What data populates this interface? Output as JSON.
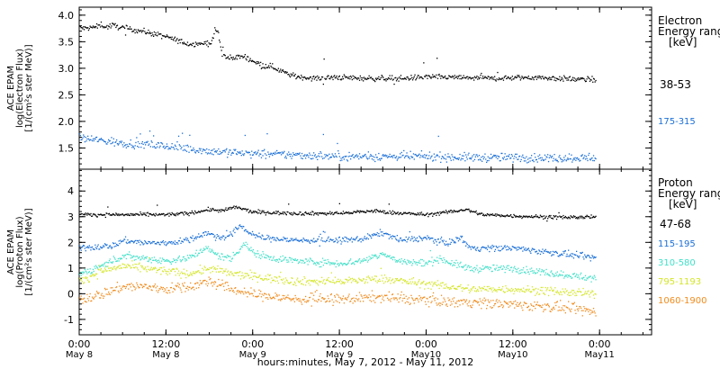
{
  "chart_data": [
    {
      "type": "scatter",
      "ylabel_lines": [
        "ACE EPAM",
        "log(Electron Flux)",
        "[1/(cm²s ster MeV)]"
      ],
      "ylim": [
        1.1,
        4.15
      ],
      "yticks": [
        1.5,
        2.0,
        2.5,
        3.0,
        3.5,
        4.0
      ],
      "ytick_labels": [
        "1.5",
        "2.0",
        "2.5",
        "3.0",
        "3.5",
        "4.0"
      ],
      "legend_title_lines": [
        "Electron",
        "Energy ranges",
        "[keV]"
      ],
      "series": [
        {
          "name": "38-53",
          "color": "#000000",
          "anchors": [
            [
              0,
              3.78
            ],
            [
              0.12,
              3.76
            ],
            [
              0.4,
              3.79
            ],
            [
              0.5,
              3.84
            ],
            [
              0.6,
              3.78
            ],
            [
              0.75,
              3.82
            ],
            [
              1.0,
              3.77
            ],
            [
              1.5,
              3.7
            ],
            [
              2.0,
              3.6
            ],
            [
              2.5,
              3.47
            ],
            [
              2.9,
              3.48
            ],
            [
              3.05,
              3.49
            ],
            [
              3.12,
              3.74
            ],
            [
              3.2,
              3.68
            ],
            [
              3.28,
              3.27
            ],
            [
              3.4,
              3.2
            ],
            [
              3.6,
              3.22
            ],
            [
              3.8,
              3.23
            ],
            [
              4.0,
              3.15
            ],
            [
              4.2,
              3.07
            ],
            [
              4.4,
              3.05
            ],
            [
              4.6,
              2.98
            ],
            [
              4.8,
              2.9
            ],
            [
              5.0,
              2.85
            ],
            [
              5.5,
              2.82
            ],
            [
              6.0,
              2.84
            ],
            [
              6.5,
              2.82
            ],
            [
              7.0,
              2.82
            ],
            [
              7.5,
              2.82
            ],
            [
              8.0,
              2.85
            ],
            [
              8.5,
              2.84
            ],
            [
              9.0,
              2.83
            ],
            [
              9.5,
              2.82
            ],
            [
              10.0,
              2.83
            ],
            [
              10.5,
              2.84
            ],
            [
              11.0,
              2.82
            ],
            [
              11.5,
              2.8
            ],
            [
              11.9,
              2.8
            ]
          ],
          "noise": 0.025
        },
        {
          "name": "175-315",
          "color": "#1a6fd6",
          "anchors": [
            [
              0,
              1.7
            ],
            [
              0.5,
              1.65
            ],
            [
              1.0,
              1.6
            ],
            [
              1.5,
              1.58
            ],
            [
              2.0,
              1.54
            ],
            [
              2.5,
              1.5
            ],
            [
              3.0,
              1.45
            ],
            [
              3.5,
              1.43
            ],
            [
              4.0,
              1.4
            ],
            [
              5.0,
              1.38
            ],
            [
              6.0,
              1.35
            ],
            [
              7.0,
              1.35
            ],
            [
              8.0,
              1.35
            ],
            [
              9.0,
              1.33
            ],
            [
              10.0,
              1.33
            ],
            [
              11.0,
              1.32
            ],
            [
              11.9,
              1.33
            ]
          ],
          "noise": 0.04
        }
      ]
    },
    {
      "type": "scatter",
      "ylabel_lines": [
        "ACE EPAM",
        "log(Proton Flux)",
        "[1/(cm²s ster MeV)]"
      ],
      "ylim": [
        -1.6,
        4.85
      ],
      "yticks": [
        -1,
        0,
        1,
        2,
        3,
        4
      ],
      "ytick_labels": [
        "-1",
        "0",
        "1",
        "2",
        "3",
        "4"
      ],
      "legend_title_lines": [
        "Proton",
        "Energy ranges",
        "[keV]"
      ],
      "series": [
        {
          "name": "47-68",
          "color": "#000000",
          "anchors": [
            [
              0,
              3.1
            ],
            [
              1.0,
              3.1
            ],
            [
              2.0,
              3.1
            ],
            [
              2.5,
              3.15
            ],
            [
              3.0,
              3.3
            ],
            [
              3.3,
              3.25
            ],
            [
              3.6,
              3.4
            ],
            [
              3.8,
              3.3
            ],
            [
              4.0,
              3.2
            ],
            [
              5.0,
              3.15
            ],
            [
              6.0,
              3.15
            ],
            [
              6.8,
              3.25
            ],
            [
              7.0,
              3.2
            ],
            [
              8.0,
              3.1
            ],
            [
              8.5,
              3.2
            ],
            [
              8.9,
              3.3
            ],
            [
              9.3,
              3.1
            ],
            [
              10.0,
              3.05
            ],
            [
              11.0,
              3.0
            ],
            [
              11.9,
              3.0
            ]
          ],
          "noise": 0.035
        },
        {
          "name": "115-195",
          "color": "#1a6fd6",
          "anchors": [
            [
              0,
              1.8
            ],
            [
              0.8,
              1.9
            ],
            [
              1.0,
              2.1
            ],
            [
              1.5,
              2.0
            ],
            [
              2.0,
              2.0
            ],
            [
              2.5,
              2.1
            ],
            [
              2.9,
              2.4
            ],
            [
              3.2,
              2.2
            ],
            [
              3.5,
              2.3
            ],
            [
              3.7,
              2.7
            ],
            [
              3.9,
              2.4
            ],
            [
              4.2,
              2.2
            ],
            [
              5.0,
              2.1
            ],
            [
              6.0,
              2.1
            ],
            [
              6.5,
              2.15
            ],
            [
              7.0,
              2.4
            ],
            [
              7.4,
              2.1
            ],
            [
              8.0,
              2.2
            ],
            [
              8.2,
              2.1
            ],
            [
              8.5,
              2.0
            ],
            [
              8.8,
              2.2
            ],
            [
              9.0,
              1.8
            ],
            [
              9.5,
              1.8
            ],
            [
              10.0,
              1.8
            ],
            [
              10.5,
              1.7
            ],
            [
              11.0,
              1.6
            ],
            [
              11.5,
              1.5
            ],
            [
              11.9,
              1.4
            ]
          ],
          "noise": 0.06
        },
        {
          "name": "310-580",
          "color": "#40e0c8",
          "anchors": [
            [
              0,
              0.8
            ],
            [
              0.5,
              1.1
            ],
            [
              1.0,
              1.5
            ],
            [
              1.5,
              1.4
            ],
            [
              2.0,
              1.3
            ],
            [
              2.5,
              1.4
            ],
            [
              2.9,
              1.8
            ],
            [
              3.2,
              1.5
            ],
            [
              3.5,
              1.4
            ],
            [
              3.8,
              2.0
            ],
            [
              4.0,
              1.6
            ],
            [
              4.5,
              1.4
            ],
            [
              5.0,
              1.3
            ],
            [
              6.0,
              1.2
            ],
            [
              6.5,
              1.3
            ],
            [
              7.0,
              1.6
            ],
            [
              7.3,
              1.3
            ],
            [
              8.0,
              1.2
            ],
            [
              8.3,
              1.4
            ],
            [
              8.6,
              1.2
            ],
            [
              9.0,
              1.0
            ],
            [
              9.5,
              1.0
            ],
            [
              10.0,
              1.0
            ],
            [
              10.5,
              0.9
            ],
            [
              11.0,
              0.8
            ],
            [
              11.5,
              0.7
            ],
            [
              11.9,
              0.6
            ]
          ],
          "noise": 0.07
        },
        {
          "name": "795-1193",
          "color": "#d4e628",
          "anchors": [
            [
              0,
              0.5
            ],
            [
              0.5,
              0.9
            ],
            [
              1.0,
              1.1
            ],
            [
              1.5,
              1.0
            ],
            [
              2.0,
              0.9
            ],
            [
              2.5,
              0.8
            ],
            [
              3.0,
              1.0
            ],
            [
              3.5,
              0.8
            ],
            [
              4.0,
              0.7
            ],
            [
              4.5,
              0.6
            ],
            [
              5.0,
              0.5
            ],
            [
              5.5,
              0.5
            ],
            [
              6.0,
              0.5
            ],
            [
              7.0,
              0.6
            ],
            [
              7.5,
              0.5
            ],
            [
              8.0,
              0.4
            ],
            [
              8.5,
              0.3
            ],
            [
              9.0,
              0.2
            ],
            [
              9.5,
              0.2
            ],
            [
              10.0,
              0.2
            ],
            [
              11.0,
              0.1
            ],
            [
              11.9,
              0.0
            ]
          ],
          "noise": 0.08
        },
        {
          "name": "1060-1900",
          "color": "#f08c1e",
          "anchors": [
            [
              0,
              -0.2
            ],
            [
              0.5,
              0.0
            ],
            [
              1.0,
              0.3
            ],
            [
              1.5,
              0.3
            ],
            [
              2.0,
              0.2
            ],
            [
              2.5,
              0.3
            ],
            [
              3.0,
              0.5
            ],
            [
              3.5,
              0.2
            ],
            [
              4.0,
              0.0
            ],
            [
              4.5,
              -0.1
            ],
            [
              5.0,
              -0.2
            ],
            [
              6.0,
              -0.2
            ],
            [
              7.0,
              -0.1
            ],
            [
              7.5,
              -0.2
            ],
            [
              8.0,
              -0.2
            ],
            [
              8.5,
              -0.3
            ],
            [
              9.0,
              -0.3
            ],
            [
              10.0,
              -0.4
            ],
            [
              11.0,
              -0.5
            ],
            [
              11.5,
              -0.6
            ],
            [
              11.9,
              -0.7
            ]
          ],
          "noise": 0.1
        }
      ]
    }
  ],
  "x_axis": {
    "xlim": [
      0,
      13.2
    ],
    "major_ticks": [
      0,
      2,
      4,
      6,
      8,
      10,
      12
    ],
    "minor_step": 0.5,
    "tick_labels": [
      {
        "time": "0:00",
        "date": "May 8"
      },
      {
        "time": "12:00",
        "date": "May 8"
      },
      {
        "time": "0:00",
        "date": "May 9"
      },
      {
        "time": "12:00",
        "date": "May 9"
      },
      {
        "time": "0:00",
        "date": "May10"
      },
      {
        "time": "12:00",
        "date": "May10"
      },
      {
        "time": "0:00",
        "date": "May11"
      }
    ],
    "xlabel": "hours:minutes, May  7, 2012 - May 11, 2012"
  }
}
